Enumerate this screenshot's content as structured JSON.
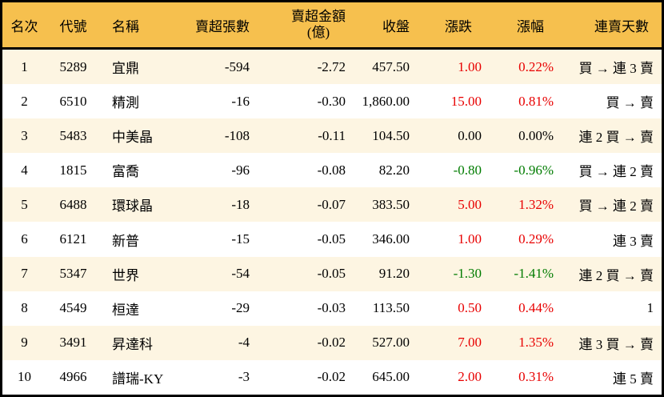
{
  "table": {
    "columns": [
      {
        "key": "rank",
        "label": "名次"
      },
      {
        "key": "code",
        "label": "代號"
      },
      {
        "key": "name",
        "label": "名稱"
      },
      {
        "key": "sell_volume",
        "label": "賣超張數"
      },
      {
        "key": "sell_amount",
        "label": "賣超金額",
        "label2": "(億)"
      },
      {
        "key": "close",
        "label": "收盤"
      },
      {
        "key": "change",
        "label": "漲跌"
      },
      {
        "key": "change_pct",
        "label": "漲幅"
      },
      {
        "key": "streak",
        "label": "連賣天數"
      }
    ],
    "rows": [
      {
        "rank": "1",
        "code": "5289",
        "name": "宜鼎",
        "sell_volume": "-594",
        "sell_amount": "-2.72",
        "close": "457.50",
        "change": "1.00",
        "change_pct": "0.22%",
        "streak": "買 → 連 3 賣",
        "trend": "up"
      },
      {
        "rank": "2",
        "code": "6510",
        "name": "精測",
        "sell_volume": "-16",
        "sell_amount": "-0.30",
        "close": "1,860.00",
        "change": "15.00",
        "change_pct": "0.81%",
        "streak": "買 → 賣",
        "trend": "up"
      },
      {
        "rank": "3",
        "code": "5483",
        "name": "中美晶",
        "sell_volume": "-108",
        "sell_amount": "-0.11",
        "close": "104.50",
        "change": "0.00",
        "change_pct": "0.00%",
        "streak": "連 2 買 → 賣",
        "trend": "flat"
      },
      {
        "rank": "4",
        "code": "1815",
        "name": "富喬",
        "sell_volume": "-96",
        "sell_amount": "-0.08",
        "close": "82.20",
        "change": "-0.80",
        "change_pct": "-0.96%",
        "streak": "買 → 連 2 賣",
        "trend": "down"
      },
      {
        "rank": "5",
        "code": "6488",
        "name": "環球晶",
        "sell_volume": "-18",
        "sell_amount": "-0.07",
        "close": "383.50",
        "change": "5.00",
        "change_pct": "1.32%",
        "streak": "買 → 連 2 賣",
        "trend": "up"
      },
      {
        "rank": "6",
        "code": "6121",
        "name": "新普",
        "sell_volume": "-15",
        "sell_amount": "-0.05",
        "close": "346.00",
        "change": "1.00",
        "change_pct": "0.29%",
        "streak": "連 3 賣",
        "trend": "up"
      },
      {
        "rank": "7",
        "code": "5347",
        "name": "世界",
        "sell_volume": "-54",
        "sell_amount": "-0.05",
        "close": "91.20",
        "change": "-1.30",
        "change_pct": "-1.41%",
        "streak": "連 2 買 → 賣",
        "trend": "down"
      },
      {
        "rank": "8",
        "code": "4549",
        "name": "桓達",
        "sell_volume": "-29",
        "sell_amount": "-0.03",
        "close": "113.50",
        "change": "0.50",
        "change_pct": "0.44%",
        "streak": "1",
        "trend": "up"
      },
      {
        "rank": "9",
        "code": "3491",
        "name": "昇達科",
        "sell_volume": "-4",
        "sell_amount": "-0.02",
        "close": "527.00",
        "change": "7.00",
        "change_pct": "1.35%",
        "streak": "連 3 買 → 賣",
        "trend": "up"
      },
      {
        "rank": "10",
        "code": "4966",
        "name": "譜瑞-KY",
        "sell_volume": "-3",
        "sell_amount": "-0.02",
        "close": "645.00",
        "change": "2.00",
        "change_pct": "0.31%",
        "streak": "連 5 賣",
        "trend": "up"
      }
    ]
  },
  "colors": {
    "header_bg": "#f6c04e",
    "row_bg": "#ffffff",
    "row_alt_bg": "#fdf5e2",
    "border": "#000000",
    "up": "#e80000",
    "down": "#007c00"
  }
}
